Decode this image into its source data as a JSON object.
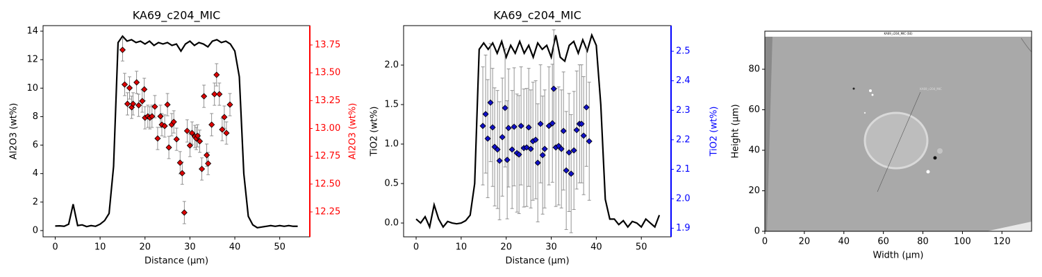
{
  "chart_data": [
    {
      "type": "line",
      "title": "KA69_c204_MIC",
      "xlabel": "Distance (µm)",
      "ylabel": "Al2O3 (wt%)",
      "y2label": "Al2O3 (wt%)",
      "y2color": "#ff0000",
      "xlim": [
        -2.7,
        56.7
      ],
      "xticks": [
        0,
        10,
        20,
        30,
        40,
        50
      ],
      "ylim": [
        -0.44,
        14.39
      ],
      "yticks": [
        0,
        2,
        4,
        6,
        8,
        10,
        12,
        14
      ],
      "y2lim": [
        12.026,
        13.924
      ],
      "y2ticks": [
        12.25,
        {
          "value": 12.5,
          "label": "12.50"
        },
        12.75,
        {
          "value": 13,
          "label": "13.00"
        },
        13.25,
        {
          "value": 13.5,
          "label": "13.50"
        },
        13.75
      ],
      "series": [
        {
          "style": "line",
          "color": "#000000",
          "x": [
            0,
            1,
            2,
            3,
            4,
            5,
            6,
            7,
            8,
            9,
            10,
            11,
            12,
            13,
            14,
            15,
            16,
            17,
            18,
            19,
            20,
            21,
            22,
            23,
            24,
            25,
            26,
            27,
            28,
            29,
            30,
            31,
            32,
            33,
            34,
            35,
            36,
            37,
            38,
            39,
            40,
            41,
            42,
            43,
            44,
            45,
            46,
            47,
            48,
            49,
            50,
            51,
            52,
            53,
            54
          ],
          "values": [
            0.32,
            0.33,
            0.3,
            0.45,
            1.85,
            0.35,
            0.4,
            0.28,
            0.35,
            0.3,
            0.45,
            0.7,
            1.2,
            4.5,
            13.2,
            13.65,
            13.3,
            13.4,
            13.2,
            13.3,
            13.1,
            13.3,
            13.0,
            13.2,
            13.1,
            13.2,
            13.0,
            13.1,
            12.6,
            13.1,
            13.3,
            13.0,
            13.2,
            13.1,
            12.9,
            13.3,
            13.4,
            13.2,
            13.3,
            13.1,
            12.6,
            10.8,
            4.0,
            1.0,
            0.4,
            0.2,
            0.25,
            0.3,
            0.35,
            0.3,
            0.35,
            0.3,
            0.35,
            0.3,
            0.3
          ]
        },
        {
          "style": "scatter",
          "axis": "y2",
          "color": "#dd0000",
          "x": [
            15.0,
            15.47,
            16.09,
            16.56,
            17.03,
            17.34,
            18.13,
            18.59,
            19.38,
            19.84,
            20.0,
            20.63,
            21.09,
            21.56,
            22.19,
            22.81,
            23.44,
            23.75,
            24.38,
            25.0,
            25.31,
            25.94,
            26.41,
            27.03,
            27.81,
            28.28,
            28.75,
            29.38,
            30.0,
            30.47,
            31.09,
            31.41,
            31.72,
            32.19,
            32.66,
            33.13,
            33.75,
            34.06,
            34.84,
            35.47,
            35.94,
            36.56,
            37.19,
            37.66,
            38.13,
            38.91
          ],
          "values": [
            13.706,
            13.395,
            13.221,
            13.364,
            13.19,
            13.221,
            13.414,
            13.208,
            13.246,
            13.351,
            13.096,
            13.109,
            13.096,
            13.109,
            13.196,
            12.91,
            13.109,
            13.034,
            13.022,
            13.214,
            12.829,
            13.034,
            13.059,
            12.903,
            12.692,
            12.598,
            12.244,
            12.978,
            12.847,
            12.959,
            12.928,
            12.91,
            12.934,
            12.885,
            12.636,
            13.289,
            12.76,
            12.685,
            13.034,
            13.308,
            13.482,
            13.308,
            12.99,
            13.102,
            12.959,
            13.214
          ],
          "errors": [
            0.1,
            0.1,
            0.1,
            0.1,
            0.1,
            0.1,
            0.1,
            0.1,
            0.1,
            0.1,
            0.1,
            0.1,
            0.1,
            0.1,
            0.1,
            0.1,
            0.1,
            0.1,
            0.1,
            0.1,
            0.1,
            0.1,
            0.1,
            0.1,
            0.1,
            0.1,
            0.1,
            0.1,
            0.1,
            0.1,
            0.1,
            0.1,
            0.1,
            0.1,
            0.1,
            0.1,
            0.1,
            0.1,
            0.1,
            0.1,
            0.1,
            0.1,
            0.1,
            0.1,
            0.1,
            0.1
          ]
        }
      ]
    },
    {
      "type": "line",
      "title": "KA69_c204_MIC",
      "xlabel": "Distance (µm)",
      "ylabel": "TiO2 (wt%)",
      "y2label": "TiO2 (wt%)",
      "y2color": "#0000ff",
      "xlim": [
        -2.78,
        56.6
      ],
      "xticks": [
        0,
        10,
        20,
        30,
        40,
        50
      ],
      "ylim": [
        -0.175,
        2.5
      ],
      "yticks": [
        {
          "value": 0,
          "label": "0.0"
        },
        0.5,
        {
          "value": 1,
          "label": "1.0"
        },
        1.5,
        {
          "value": 2,
          "label": "2.0"
        }
      ],
      "y2lim": [
        1.871,
        2.587
      ],
      "y2ticks": [
        1.9,
        {
          "value": 2,
          "label": "2.0"
        },
        2.1,
        2.2,
        2.3,
        2.4,
        2.5
      ],
      "series": [
        {
          "style": "line",
          "color": "#000000",
          "x": [
            0,
            1,
            2,
            3,
            4,
            5,
            6,
            7,
            8,
            9,
            10,
            11,
            12,
            13,
            14,
            15,
            16,
            17,
            18,
            19,
            20,
            21,
            22,
            23,
            24,
            25,
            26,
            27,
            28,
            29,
            30,
            31,
            32,
            33,
            34,
            35,
            36,
            37,
            38,
            39,
            40,
            41,
            42,
            43,
            44,
            45,
            46,
            47,
            48,
            49,
            50,
            51,
            52,
            53,
            54
          ],
          "values": [
            0.05,
            0.0,
            0.08,
            -0.05,
            0.23,
            0.05,
            -0.05,
            0.02,
            0.0,
            -0.01,
            0.0,
            0.03,
            0.1,
            0.5,
            2.2,
            2.28,
            2.2,
            2.28,
            2.15,
            2.3,
            2.1,
            2.25,
            2.15,
            2.3,
            2.15,
            2.25,
            2.1,
            2.28,
            2.2,
            2.25,
            2.1,
            2.38,
            2.1,
            2.05,
            2.25,
            2.3,
            2.15,
            2.32,
            2.18,
            2.38,
            2.25,
            1.5,
            0.3,
            0.05,
            0.05,
            -0.02,
            0.03,
            -0.05,
            0.02,
            0.0,
            -0.05,
            0.05,
            0.0,
            -0.05,
            0.1
          ]
        },
        {
          "style": "scatter",
          "axis": "y2",
          "color": "#1010c8",
          "x": [
            14.81,
            15.43,
            15.9,
            16.51,
            16.98,
            17.44,
            18.06,
            18.52,
            19.14,
            19.75,
            20.22,
            20.52,
            21.3,
            21.76,
            22.38,
            22.84,
            23.3,
            23.92,
            24.54,
            25.0,
            25.46,
            25.93,
            26.54,
            27.01,
            27.62,
            28.09,
            28.55,
            29.48,
            30.25,
            30.56,
            31.02,
            31.64,
            32.25,
            32.72,
            33.33,
            33.95,
            34.41,
            35.03,
            35.65,
            36.27,
            36.73,
            37.19,
            37.81,
            38.43
          ],
          "values": [
            2.247,
            2.287,
            2.204,
            2.326,
            2.242,
            2.176,
            2.167,
            2.129,
            2.209,
            2.308,
            2.132,
            2.24,
            2.167,
            2.244,
            2.155,
            2.15,
            2.247,
            2.172,
            2.174,
            2.242,
            2.169,
            2.195,
            2.2,
            2.122,
            2.254,
            2.148,
            2.169,
            2.247,
            2.256,
            2.373,
            2.174,
            2.179,
            2.169,
            2.23,
            2.096,
            2.157,
            2.085,
            2.164,
            2.233,
            2.254,
            2.254,
            2.214,
            2.31,
            2.195
          ],
          "errors": [
            0.2,
            0.2,
            0.2,
            0.2,
            0.2,
            0.2,
            0.2,
            0.2,
            0.2,
            0.2,
            0.2,
            0.2,
            0.2,
            0.2,
            0.2,
            0.2,
            0.2,
            0.2,
            0.2,
            0.2,
            0.2,
            0.2,
            0.2,
            0.2,
            0.2,
            0.2,
            0.2,
            0.2,
            0.2,
            0.2,
            0.2,
            0.2,
            0.2,
            0.2,
            0.2,
            0.2,
            0.2,
            0.2,
            0.2,
            0.2,
            0.2,
            0.2,
            0.2,
            0.2
          ]
        }
      ]
    },
    {
      "type": "image",
      "xlabel": "Width (µm)",
      "ylabel": "Height (µm)",
      "image_title": "KA69_c204_MIC (SE)",
      "image_label": "KA69_c204_MIC",
      "xlim": [
        0,
        135
      ],
      "xticks": [
        0,
        20,
        40,
        60,
        80,
        100,
        120
      ],
      "ylim": [
        0,
        98.8
      ],
      "yticks": [
        0,
        20,
        40,
        60,
        80
      ]
    }
  ]
}
